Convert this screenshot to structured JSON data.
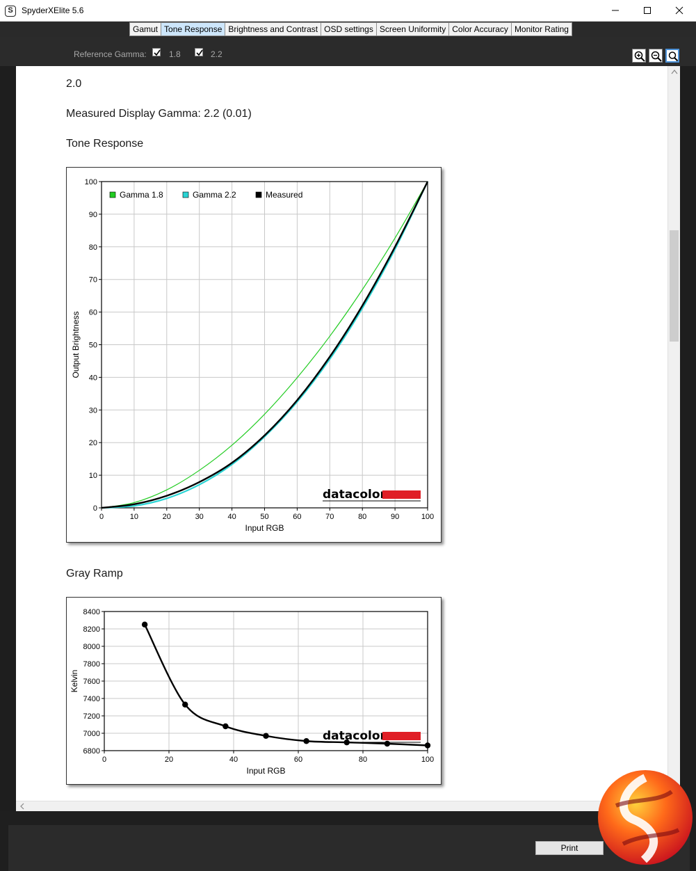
{
  "window": {
    "title": "SpyderXElite 5.6",
    "icon_letter": "S"
  },
  "tabs": [
    {
      "label": "Gamut",
      "active": false
    },
    {
      "label": "Tone Response",
      "active": true
    },
    {
      "label": "Brightness and Contrast",
      "active": false
    },
    {
      "label": "OSD settings",
      "active": false
    },
    {
      "label": "Screen Uniformity",
      "active": false
    },
    {
      "label": "Color Accuracy",
      "active": false
    },
    {
      "label": "Monitor Rating",
      "active": false
    }
  ],
  "options": {
    "reference_gamma_label": "Reference Gamma:",
    "gamma_18": {
      "label": "1.8",
      "checked": true
    },
    "gamma_22": {
      "label": "2.2",
      "checked": true
    }
  },
  "report": {
    "line_top": "2.0",
    "measured_gamma": "Measured Display Gamma: 2.2 (0.01)",
    "tone_heading": "Tone Response",
    "gray_heading": "Gray Ramp",
    "watermark": "datacolor"
  },
  "footer": {
    "print_label": "Print"
  },
  "colors": {
    "gamma18": "#22cc22",
    "gamma22": "#2ad4d4",
    "measured": "#000000",
    "brand_red": "#e01e26",
    "active_tab": "#cde6fb"
  },
  "chart_data": [
    {
      "type": "line",
      "title": "",
      "xlabel": "Input RGB",
      "ylabel": "Output Brightness",
      "xlim": [
        0,
        100
      ],
      "ylim": [
        0,
        100
      ],
      "x_ticks": [
        0,
        10,
        20,
        30,
        40,
        50,
        60,
        70,
        80,
        90,
        100
      ],
      "y_ticks": [
        0,
        10,
        20,
        30,
        40,
        50,
        60,
        70,
        80,
        90,
        100
      ],
      "grid": true,
      "legend_position": "top-left",
      "x": [
        0,
        10,
        20,
        30,
        40,
        50,
        60,
        70,
        80,
        90,
        100
      ],
      "series": [
        {
          "name": "Gamma 1.8",
          "color": "#22cc22",
          "values": [
            0,
            1.6,
            5.5,
            11.5,
            19.2,
            28.7,
            39.9,
            52.6,
            66.9,
            82.7,
            100
          ]
        },
        {
          "name": "Gamma 2.2",
          "color": "#2ad4d4",
          "values": [
            0,
            0.6,
            2.9,
            7.1,
            13.3,
            21.8,
            32.5,
            45.6,
            61.2,
            79.3,
            100
          ]
        },
        {
          "name": "Measured",
          "color": "#000000",
          "values": [
            0,
            1.1,
            3.7,
            7.9,
            13.8,
            22.2,
            33.0,
            46.3,
            62.0,
            80.0,
            100
          ]
        }
      ]
    },
    {
      "type": "line",
      "title": "",
      "xlabel": "Input RGB",
      "ylabel": "Kelvin",
      "xlim": [
        0,
        100
      ],
      "ylim": [
        6800,
        8400
      ],
      "x_ticks": [
        0,
        20,
        40,
        60,
        80,
        100
      ],
      "y_ticks": [
        6800,
        7000,
        7200,
        7400,
        7600,
        7800,
        8000,
        8200,
        8400
      ],
      "grid": true,
      "x": [
        12.5,
        25,
        37.5,
        50,
        62.5,
        75,
        87.5,
        100
      ],
      "series": [
        {
          "color": "#000000",
          "values": [
            8250,
            7330,
            7080,
            6970,
            6910,
            6895,
            6880,
            6860
          ]
        }
      ]
    }
  ]
}
